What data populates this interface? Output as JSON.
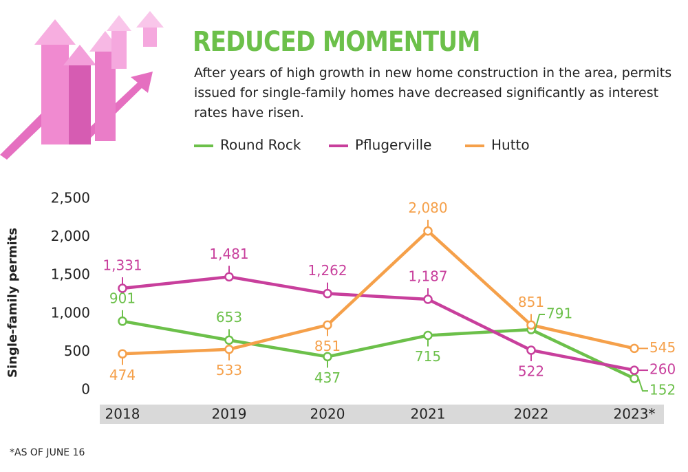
{
  "chart_data": {
    "type": "line",
    "title": "REDUCED MOMENTUM",
    "subtitle": "After years of high growth in new home construction in the area, permits issued for single-family homes have decreased significantly as interest rates have risen.",
    "y_label": "Single-family permits",
    "footnote": "*AS OF JUNE 16",
    "categories": [
      "2018",
      "2019",
      "2020",
      "2021",
      "2022",
      "2023*"
    ],
    "series": [
      {
        "name": "Round Rock",
        "color": "#6cc04a",
        "values": [
          901,
          653,
          437,
          715,
          791,
          152
        ]
      },
      {
        "name": "Pflugerville",
        "color": "#c83f9c",
        "values": [
          1331,
          1481,
          1262,
          1187,
          522,
          260
        ],
        "value_labels": [
          "1,331",
          "1,481",
          "1,262",
          "1,187",
          "522",
          "260"
        ]
      },
      {
        "name": "Hutto",
        "color": "#f5a04a",
        "values": [
          474,
          533,
          851,
          2080,
          851,
          545
        ],
        "value_labels": [
          "474",
          "533",
          "851",
          "2,080",
          "851",
          "545"
        ]
      }
    ],
    "ylim": [
      0,
      2500
    ],
    "yticks": [
      0,
      500,
      {
        "value": 1000,
        "label": "1,000"
      },
      {
        "value": 1500,
        "label": "1,500"
      },
      {
        "value": 2000,
        "label": "2,000"
      },
      {
        "value": 2500,
        "label": "2,500"
      }
    ],
    "grid": false
  }
}
